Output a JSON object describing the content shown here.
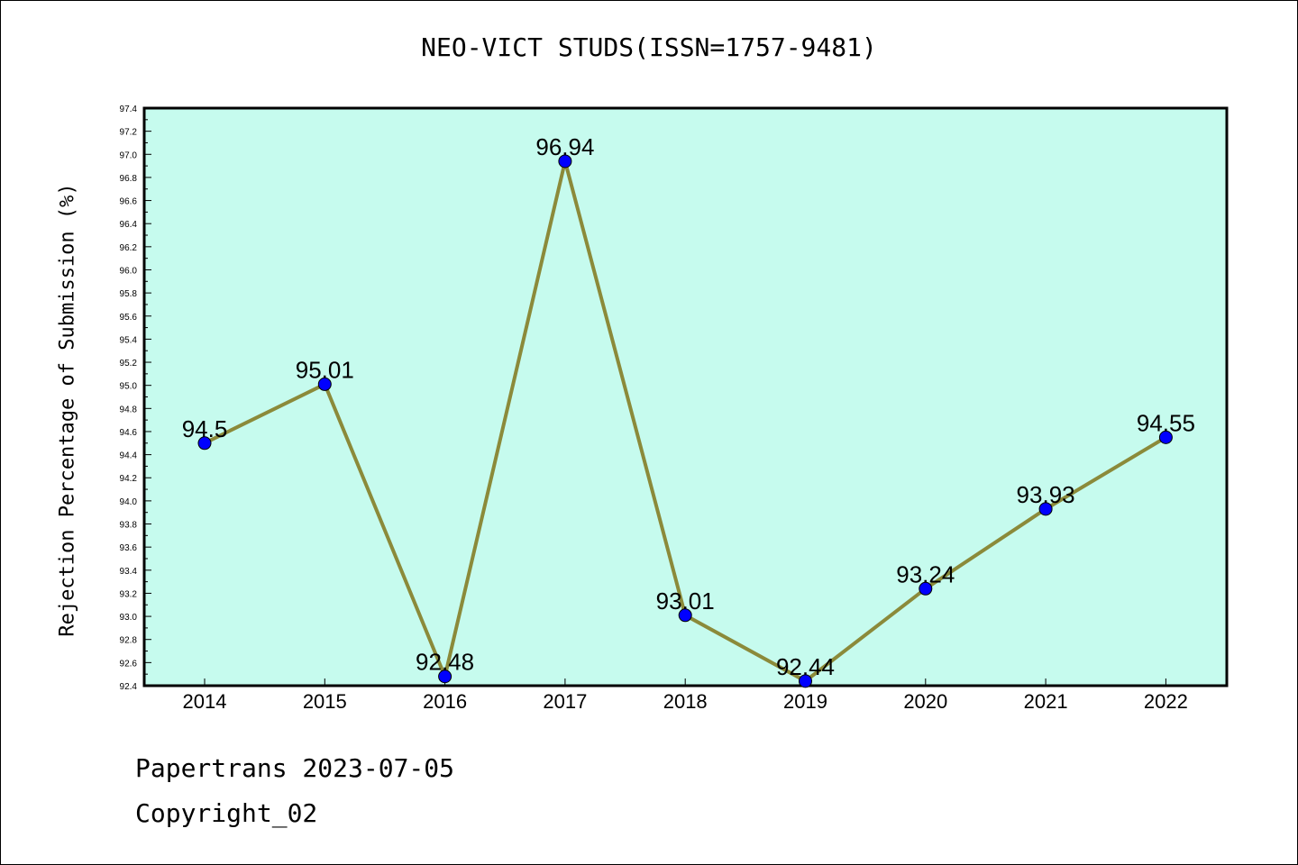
{
  "title": "NEO-VICT STUDS(ISSN=1757-9481)",
  "footer": {
    "line1": "Papertrans 2023-07-05",
    "line2": "Copyright_02"
  },
  "colors": {
    "plot_background": "#c6fbee",
    "line": "#8b8a3a",
    "marker": "#0000ff"
  },
  "chart_data": {
    "type": "line",
    "title": "NEO-VICT STUDS(ISSN=1757-9481)",
    "xlabel": "",
    "ylabel": "Rejection Percentage of Submission (%)",
    "ylim": [
      92.4,
      97.4
    ],
    "y_ticks": [
      "92.4",
      "92.6",
      "92.8",
      "93.0",
      "93.2",
      "93.4",
      "93.6",
      "93.8",
      "94.0",
      "94.2",
      "94.4",
      "94.6",
      "94.8",
      "95.0",
      "95.2",
      "95.4",
      "95.6",
      "95.8",
      "96.0",
      "96.2",
      "96.4",
      "96.6",
      "96.8",
      "97.0",
      "97.2",
      "97.4"
    ],
    "categories": [
      "2014",
      "2015",
      "2016",
      "2017",
      "2018",
      "2019",
      "2020",
      "2021",
      "2022"
    ],
    "values": [
      94.5,
      95.01,
      92.48,
      96.94,
      93.01,
      92.44,
      93.24,
      93.93,
      94.55
    ],
    "data_labels": [
      "94.5",
      "95.01",
      "92.48",
      "96.94",
      "93.01",
      "92.44",
      "93.24",
      "93.93",
      "94.55"
    ],
    "grid": false,
    "legend": "none"
  }
}
